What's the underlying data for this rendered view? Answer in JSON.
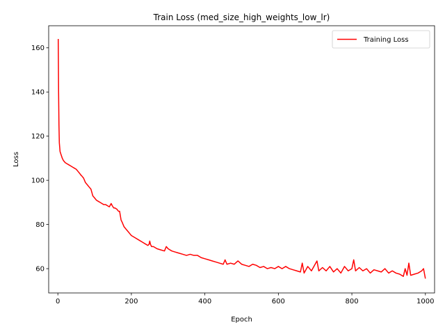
{
  "chart_data": {
    "type": "line",
    "title": "Train Loss (med_size_high_weights_low_lr)",
    "xlabel": "Epoch",
    "ylabel": "Loss",
    "xlim": [
      -25,
      1025
    ],
    "ylim": [
      49,
      170
    ],
    "xticks": [
      0,
      200,
      400,
      600,
      800,
      1000
    ],
    "yticks": [
      60,
      80,
      100,
      120,
      140,
      160
    ],
    "grid": false,
    "legend_position": "top-right",
    "series": [
      {
        "name": "Training Loss",
        "color": "#ff0000",
        "x": [
          1,
          2,
          3,
          4,
          5,
          6,
          8,
          10,
          12,
          15,
          20,
          25,
          30,
          35,
          40,
          45,
          50,
          55,
          60,
          62,
          65,
          70,
          75,
          80,
          85,
          90,
          95,
          100,
          105,
          110,
          115,
          120,
          125,
          130,
          135,
          140,
          145,
          148,
          150,
          152,
          155,
          160,
          165,
          168,
          170,
          172,
          175,
          180,
          185,
          190,
          195,
          200,
          210,
          220,
          230,
          240,
          245,
          248,
          250,
          252,
          255,
          260,
          270,
          280,
          290,
          295,
          300,
          310,
          320,
          330,
          340,
          350,
          360,
          370,
          380,
          390,
          400,
          410,
          420,
          430,
          440,
          450,
          455,
          460,
          470,
          480,
          490,
          500,
          510,
          520,
          530,
          540,
          550,
          560,
          570,
          580,
          590,
          600,
          610,
          620,
          630,
          640,
          650,
          660,
          665,
          670,
          680,
          690,
          700,
          705,
          710,
          720,
          730,
          740,
          750,
          760,
          770,
          780,
          790,
          800,
          805,
          810,
          820,
          830,
          840,
          850,
          860,
          870,
          880,
          890,
          900,
          910,
          920,
          930,
          940,
          945,
          950,
          955,
          960,
          970,
          980,
          990,
          995,
          1000
        ],
        "values": [
          164,
          140,
          125,
          117,
          115,
          113,
          112,
          111,
          110,
          109,
          108,
          107.5,
          107,
          106.5,
          106,
          105.5,
          105,
          104,
          103,
          102.5,
          102,
          101,
          99,
          98,
          97,
          96,
          93,
          92,
          91,
          90.5,
          90,
          89.5,
          89,
          89,
          88.5,
          88,
          89.5,
          88.5,
          88,
          87.5,
          87.5,
          87,
          86,
          86,
          84,
          82,
          81,
          79,
          78,
          77,
          76,
          75,
          74,
          73,
          72,
          71,
          70.5,
          71,
          72.5,
          71,
          70,
          70,
          69,
          68.5,
          68,
          70,
          69,
          68,
          67.5,
          67,
          66.5,
          66,
          66.5,
          66,
          66,
          65,
          64.5,
          64,
          63.5,
          63,
          62.5,
          62,
          64,
          62,
          62.5,
          62,
          63.5,
          62,
          61.5,
          61,
          62,
          61.5,
          60.5,
          61,
          60,
          60.5,
          60,
          61,
          60,
          61,
          60,
          59.5,
          59,
          58.5,
          62.5,
          58,
          61,
          59,
          62,
          63.5,
          59,
          60.5,
          59,
          61,
          58.5,
          60,
          58,
          61,
          59,
          60,
          64,
          59,
          60.5,
          59,
          60,
          58,
          59.5,
          59,
          58.5,
          60,
          58,
          59,
          58,
          57.5,
          56.5,
          60,
          57,
          62.5,
          57,
          57.5,
          58,
          59,
          60,
          55.5
        ]
      }
    ]
  }
}
